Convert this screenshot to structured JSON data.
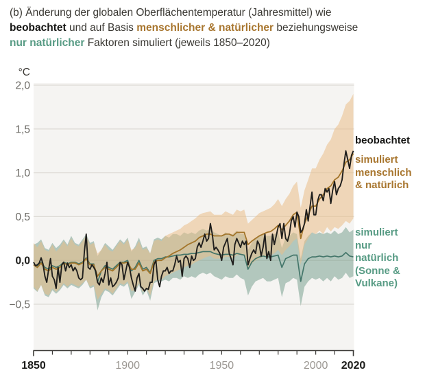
{
  "title": {
    "line1": "(b) Änderung der globalen Oberflächentemperatur (Jahresmittel) wie",
    "line2_bold": "beobachtet",
    "line2_mid": " und auf Basis ",
    "line2_colored": "menschlicher & natürlicher",
    "line2_end": " beziehungsweise",
    "line3_colored": "nur natürlicher",
    "line3_end": " Faktoren simuliert (jeweils 1850–2020)"
  },
  "legend": {
    "observed": "beobachtet",
    "human": "simuliert\nmenschlich\n& natürlich",
    "natural": "simuliert\nnur\nnatürlich\n(Sonne &\nVulkane)"
  },
  "axes": {
    "unit_label": "°C",
    "y_ticks": [
      {
        "label": "2,0",
        "value": 2.0,
        "bold": false
      },
      {
        "label": "1,5",
        "value": 1.5,
        "bold": false
      },
      {
        "label": "1,0",
        "value": 1.0,
        "bold": false
      },
      {
        "label": "0,5",
        "value": 0.5,
        "bold": false
      },
      {
        "label": "0,0",
        "value": 0.0,
        "bold": true
      },
      {
        "label": "−0,5",
        "value": -0.5,
        "bold": false
      }
    ],
    "x_ticks": [
      {
        "label": "1850",
        "value": 1850,
        "bold": true
      },
      {
        "label": "1900",
        "value": 1900,
        "bold": false
      },
      {
        "label": "1950",
        "value": 1950,
        "bold": false
      },
      {
        "label": "2000",
        "value": 2000,
        "bold": false
      },
      {
        "label": "2020",
        "value": 2020,
        "bold": true
      }
    ],
    "x_minor_step": 10,
    "x_range": [
      1850,
      2020
    ]
  },
  "colors": {
    "observed_line": "#1f1e1c",
    "human_line": "#a3752a",
    "human_band_fill": "rgba(233,189,136,0.55)",
    "natural_line": "#44766a",
    "natural_band_fill": "rgba(111,154,136,0.50)",
    "human_text": "#a8762f",
    "natural_text": "#579b84",
    "grid": "#dedbd6",
    "plot_bg": "#f5f4f2",
    "axis": "#3c3a37",
    "tick_label": "#9b9792",
    "tick_label_y": "#6b6964",
    "tick_label_bold": "#1c1c1a"
  },
  "chart_data": {
    "type": "line",
    "title": "Änderung der globalen Oberflächentemperatur (Jahresmittel), beobachtet und simuliert, 1850–2020",
    "ylabel": "°C",
    "ylim": [
      -1.0,
      2.0
    ],
    "x_range": [
      1850,
      2020
    ],
    "grid": true,
    "legend_position": "right",
    "obs_year_start": 1850,
    "obs_year_step": 1,
    "observed": [
      -0.02,
      -0.06,
      -0.05,
      -0.03,
      0.03,
      -0.04,
      -0.18,
      -0.25,
      -0.1,
      0.02,
      -0.18,
      -0.22,
      -0.32,
      -0.08,
      -0.25,
      -0.05,
      -0.02,
      -0.12,
      -0.03,
      -0.08,
      -0.05,
      -0.12,
      -0.08,
      -0.12,
      -0.2,
      -0.22,
      -0.2,
      0.1,
      0.3,
      -0.08,
      -0.1,
      -0.05,
      -0.08,
      -0.12,
      -0.25,
      -0.28,
      -0.2,
      -0.25,
      -0.15,
      -0.02,
      -0.28,
      -0.2,
      -0.3,
      -0.28,
      -0.25,
      -0.2,
      -0.02,
      -0.05,
      -0.22,
      -0.12,
      -0.02,
      -0.08,
      -0.2,
      -0.28,
      -0.35,
      -0.2,
      -0.15,
      -0.3,
      -0.32,
      -0.35,
      -0.32,
      -0.33,
      -0.25,
      -0.25,
      -0.05,
      0.0,
      -0.22,
      -0.3,
      -0.18,
      -0.12,
      -0.12,
      -0.08,
      -0.15,
      -0.12,
      -0.12,
      -0.05,
      0.05,
      -0.02,
      0.0,
      -0.18,
      0.02,
      0.05,
      0.02,
      -0.08,
      0.05,
      0.0,
      0.02,
      0.15,
      0.2,
      0.15,
      0.22,
      0.3,
      0.22,
      0.25,
      0.42,
      0.3,
      0.12,
      0.15,
      0.12,
      0.08,
      0.0,
      0.15,
      0.2,
      0.25,
      0.08,
      0.02,
      -0.05,
      0.18,
      0.25,
      0.2,
      0.15,
      0.22,
      0.18,
      0.22,
      -0.05,
      0.02,
      0.08,
      0.12,
      0.08,
      0.22,
      0.18,
      0.05,
      0.15,
      0.3,
      0.02,
      0.1,
      0.0,
      0.3,
      0.18,
      0.28,
      0.38,
      0.42,
      0.25,
      0.42,
      0.25,
      0.22,
      0.3,
      0.45,
      0.5,
      0.38,
      0.55,
      0.5,
      0.32,
      0.35,
      0.42,
      0.58,
      0.45,
      0.62,
      0.78,
      0.52,
      0.52,
      0.68,
      0.75,
      0.75,
      0.68,
      0.82,
      0.78,
      0.82,
      0.65,
      0.8,
      0.9,
      0.75,
      0.82,
      0.85,
      0.92,
      1.1,
      1.25,
      1.15,
      1.05,
      1.2,
      1.25
    ],
    "sim_year_start": 1850,
    "sim_year_step": 2,
    "human_natural": {
      "mean": [
        -0.05,
        -0.08,
        -0.03,
        -0.1,
        -0.12,
        -0.08,
        -0.1,
        -0.08,
        -0.03,
        -0.05,
        -0.03,
        -0.03,
        -0.05,
        -0.03,
        0.02,
        -0.05,
        -0.05,
        -0.18,
        -0.12,
        -0.08,
        -0.1,
        -0.12,
        -0.08,
        -0.03,
        -0.03,
        -0.02,
        -0.1,
        -0.1,
        -0.03,
        -0.12,
        -0.1,
        -0.15,
        -0.02,
        0.0,
        0.0,
        0.03,
        0.05,
        0.08,
        0.1,
        0.12,
        0.15,
        0.18,
        0.2,
        0.22,
        0.26,
        0.28,
        0.3,
        0.3,
        0.28,
        0.28,
        0.28,
        0.3,
        0.3,
        0.28,
        0.32,
        0.32,
        0.32,
        0.18,
        0.22,
        0.25,
        0.28,
        0.3,
        0.32,
        0.33,
        0.36,
        0.4,
        0.35,
        0.4,
        0.45,
        0.52,
        0.55,
        0.25,
        0.42,
        0.52,
        0.62,
        0.62,
        0.7,
        0.75,
        0.82,
        0.85,
        0.92,
        0.95,
        1.02,
        1.12,
        1.15,
        1.22
      ],
      "upper": [
        0.2,
        0.15,
        0.22,
        0.12,
        0.1,
        0.18,
        0.1,
        0.15,
        0.22,
        0.16,
        0.25,
        0.18,
        0.16,
        0.22,
        0.28,
        0.18,
        0.2,
        0.08,
        0.12,
        0.18,
        0.12,
        0.1,
        0.16,
        0.22,
        0.18,
        0.24,
        0.12,
        0.14,
        0.22,
        0.12,
        0.14,
        0.08,
        0.22,
        0.24,
        0.22,
        0.28,
        0.3,
        0.32,
        0.34,
        0.36,
        0.4,
        0.42,
        0.45,
        0.48,
        0.52,
        0.54,
        0.55,
        0.56,
        0.52,
        0.52,
        0.52,
        0.56,
        0.54,
        0.52,
        0.58,
        0.56,
        0.58,
        0.42,
        0.46,
        0.5,
        0.54,
        0.56,
        0.58,
        0.6,
        0.64,
        0.7,
        0.62,
        0.7,
        0.76,
        0.85,
        0.9,
        0.6,
        0.8,
        0.92,
        1.05,
        1.05,
        1.15,
        1.22,
        1.32,
        1.38,
        1.5,
        1.55,
        1.65,
        1.78,
        1.82,
        1.9
      ],
      "lower": [
        -0.3,
        -0.35,
        -0.28,
        -0.38,
        -0.4,
        -0.32,
        -0.36,
        -0.32,
        -0.26,
        -0.3,
        -0.26,
        -0.28,
        -0.3,
        -0.26,
        -0.22,
        -0.3,
        -0.28,
        -0.45,
        -0.38,
        -0.32,
        -0.34,
        -0.38,
        -0.32,
        -0.26,
        -0.28,
        -0.24,
        -0.35,
        -0.34,
        -0.26,
        -0.36,
        -0.32,
        -0.4,
        -0.24,
        -0.22,
        -0.22,
        -0.18,
        -0.16,
        -0.14,
        -0.12,
        -0.1,
        -0.08,
        -0.06,
        -0.05,
        -0.02,
        0.0,
        0.02,
        0.04,
        0.05,
        0.02,
        0.02,
        0.02,
        0.04,
        0.04,
        0.02,
        0.06,
        0.06,
        0.05,
        -0.08,
        -0.04,
        0.0,
        0.02,
        0.04,
        0.05,
        0.06,
        0.08,
        0.12,
        0.06,
        0.12,
        0.16,
        0.22,
        0.25,
        -0.05,
        0.18,
        0.25,
        0.32,
        0.3,
        0.34,
        0.3,
        0.38,
        0.33,
        0.38,
        0.36,
        0.4,
        0.45,
        0.42,
        0.48
      ]
    },
    "natural_only": {
      "mean": [
        -0.05,
        -0.06,
        -0.02,
        -0.08,
        -0.1,
        -0.06,
        -0.08,
        -0.06,
        -0.02,
        -0.04,
        -0.02,
        -0.02,
        -0.04,
        -0.02,
        0.03,
        -0.04,
        -0.04,
        -0.25,
        -0.12,
        -0.06,
        -0.08,
        -0.1,
        -0.06,
        -0.02,
        -0.02,
        0.0,
        -0.12,
        -0.08,
        0.0,
        -0.1,
        -0.08,
        -0.14,
        0.0,
        0.02,
        0.02,
        0.04,
        0.04,
        0.05,
        0.06,
        0.06,
        0.07,
        0.07,
        0.08,
        0.08,
        0.09,
        0.1,
        0.1,
        0.1,
        0.08,
        0.07,
        0.06,
        0.07,
        0.07,
        0.06,
        0.08,
        0.07,
        0.06,
        -0.1,
        -0.02,
        0.02,
        0.04,
        0.05,
        0.04,
        0.04,
        0.05,
        0.06,
        -0.08,
        0.02,
        0.04,
        0.06,
        0.06,
        -0.24,
        -0.04,
        0.02,
        0.04,
        0.04,
        0.05,
        0.04,
        0.05,
        0.04,
        0.05,
        0.04,
        0.05,
        0.09,
        0.05,
        0.04
      ],
      "upper": [
        0.18,
        0.2,
        0.24,
        0.14,
        0.12,
        0.2,
        0.14,
        0.18,
        0.24,
        0.18,
        0.28,
        0.2,
        0.18,
        0.24,
        0.3,
        0.2,
        0.22,
        0.05,
        0.12,
        0.2,
        0.16,
        0.12,
        0.18,
        0.24,
        0.2,
        0.26,
        0.1,
        0.16,
        0.26,
        0.14,
        0.16,
        0.08,
        0.24,
        0.26,
        0.24,
        0.28,
        0.26,
        0.3,
        0.3,
        0.28,
        0.32,
        0.3,
        0.32,
        0.3,
        0.34,
        0.36,
        0.34,
        0.36,
        0.32,
        0.3,
        0.28,
        0.32,
        0.3,
        0.3,
        0.34,
        0.3,
        0.3,
        0.12,
        0.2,
        0.26,
        0.28,
        0.3,
        0.28,
        0.28,
        0.3,
        0.32,
        0.14,
        0.26,
        0.28,
        0.32,
        0.3,
        0.02,
        0.22,
        0.28,
        0.32,
        0.3,
        0.32,
        0.3,
        0.32,
        0.3,
        0.34,
        0.3,
        0.32,
        0.38,
        0.32,
        0.35
      ],
      "lower": [
        -0.32,
        -0.36,
        -0.28,
        -0.4,
        -0.42,
        -0.34,
        -0.38,
        -0.34,
        -0.28,
        -0.32,
        -0.28,
        -0.3,
        -0.32,
        -0.28,
        -0.22,
        -0.32,
        -0.3,
        -0.57,
        -0.42,
        -0.34,
        -0.36,
        -0.4,
        -0.34,
        -0.28,
        -0.3,
        -0.26,
        -0.44,
        -0.36,
        -0.28,
        -0.4,
        -0.34,
        -0.46,
        -0.26,
        -0.24,
        -0.24,
        -0.22,
        -0.24,
        -0.2,
        -0.2,
        -0.22,
        -0.18,
        -0.2,
        -0.18,
        -0.2,
        -0.16,
        -0.14,
        -0.16,
        -0.14,
        -0.18,
        -0.2,
        -0.22,
        -0.18,
        -0.2,
        -0.2,
        -0.16,
        -0.2,
        -0.22,
        -0.4,
        -0.3,
        -0.24,
        -0.22,
        -0.2,
        -0.24,
        -0.24,
        -0.22,
        -0.2,
        -0.42,
        -0.26,
        -0.24,
        -0.2,
        -0.22,
        -0.52,
        -0.3,
        -0.24,
        -0.2,
        -0.22,
        -0.2,
        -0.24,
        -0.2,
        -0.24,
        -0.18,
        -0.22,
        -0.2,
        -0.14,
        -0.2,
        -0.18
      ]
    }
  }
}
